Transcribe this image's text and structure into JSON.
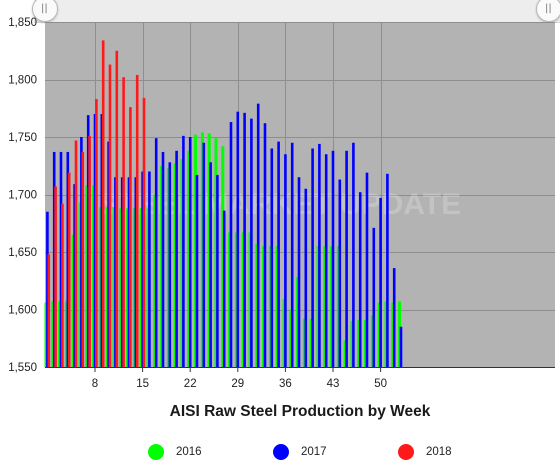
{
  "chart_data": {
    "type": "bar",
    "title": "AISI Raw Steel Production by Week",
    "xlabel": "",
    "ylabel": "",
    "x_ticks": [
      8,
      15,
      22,
      29,
      36,
      43,
      50
    ],
    "y_ticks": [
      "1,550",
      "1,600",
      "1,650",
      "1,700",
      "1,750",
      "1,800",
      "1,850"
    ],
    "ylim": [
      1550,
      1850
    ],
    "xlim": [
      1,
      53
    ],
    "grid": true,
    "watermark": "STEEL MARKET UPDATE",
    "legend_position": "bottom",
    "series": [
      {
        "name": "2016",
        "color": "#00ff00",
        "values": [
          1606,
          1607,
          1607,
          1607,
          1665,
          1693,
          1708,
          1708,
          1689,
          1689,
          1689,
          1688,
          1688,
          1688,
          1688,
          1688,
          1700,
          1725,
          1723,
          1727,
          1731,
          1738,
          1752,
          1754,
          1753,
          1749,
          1742,
          1667,
          1667,
          1667,
          1667,
          1657,
          1655,
          1655,
          1655,
          1609,
          1600,
          1628,
          1592,
          1592,
          1655,
          1655,
          1655,
          1655,
          1573,
          1590,
          1591,
          1591,
          1595,
          1606,
          1607,
          1606,
          1607
        ]
      },
      {
        "name": "2017",
        "color": "#0000ff",
        "values": [
          1685,
          1737,
          1737,
          1737,
          1709,
          1750,
          1769,
          1770,
          1770,
          1746,
          1715,
          1715,
          1715,
          1715,
          1720,
          1720,
          1749,
          1737,
          1728,
          1738,
          1751,
          1750,
          1717,
          1745,
          1728,
          1717,
          1686,
          1763,
          1772,
          1771,
          1766,
          1779,
          1762,
          1740,
          1746,
          1735,
          1745,
          1715,
          1705,
          1740,
          1744,
          1735,
          1738,
          1713,
          1738,
          1745,
          1702,
          1719,
          1671,
          1697,
          1718,
          1636,
          1585
        ]
      },
      {
        "name": "2018",
        "color": "#ff1a1a",
        "values": [
          1648,
          1707,
          1692,
          1719,
          1747,
          1737,
          1751,
          1783,
          1834,
          1813,
          1825,
          1802,
          1776,
          1804,
          1784
        ]
      }
    ]
  }
}
